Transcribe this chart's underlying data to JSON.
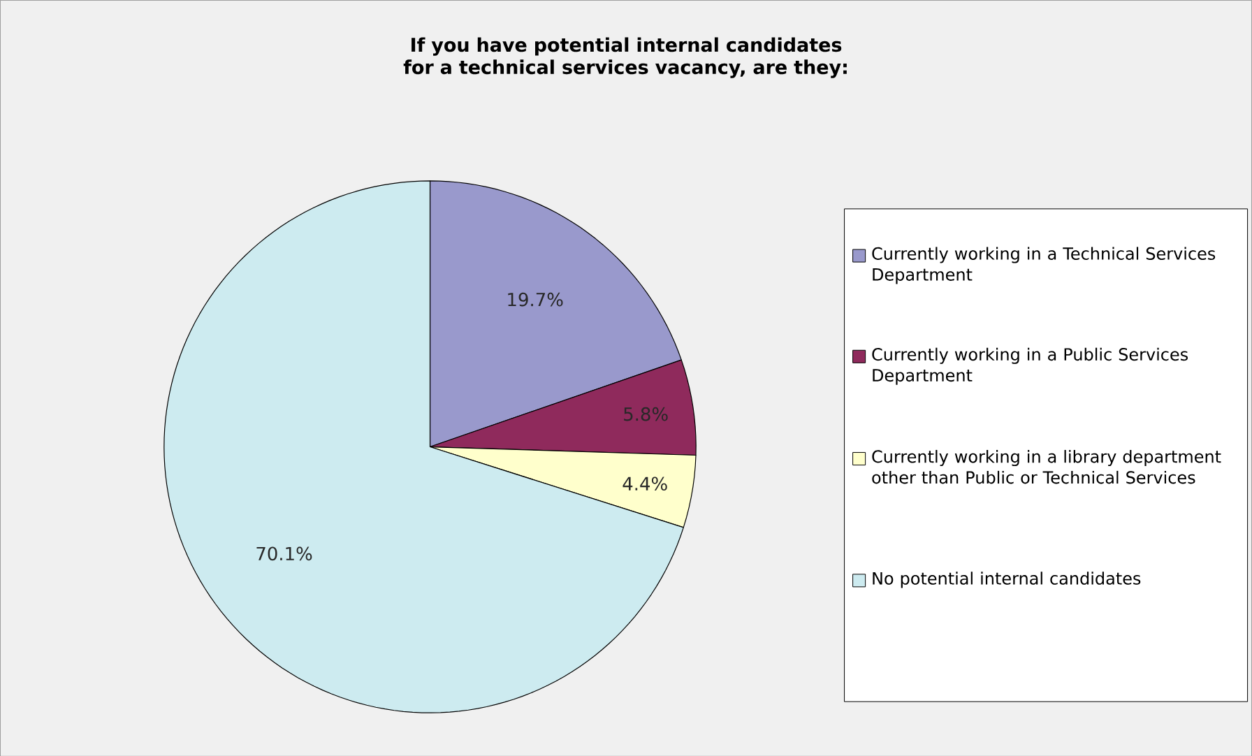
{
  "chart_data": {
    "type": "pie",
    "title": "If you have potential internal candidates for a technical services vacancy, are they:",
    "categories": [
      "Currently working in a Technical Services Department",
      "Currently working in a Public Services Department",
      "Currently working in a library department other than Public or Technical Services",
      "No potential internal candidates"
    ],
    "values": [
      19.7,
      5.8,
      4.4,
      70.1
    ],
    "colors": [
      "#9999cc",
      "#8f2a5c",
      "#ffffcc",
      "#cdebf0"
    ],
    "value_labels": [
      "19.7%",
      "5.8%",
      "4.4%",
      "70.1%"
    ],
    "legend": "right"
  }
}
